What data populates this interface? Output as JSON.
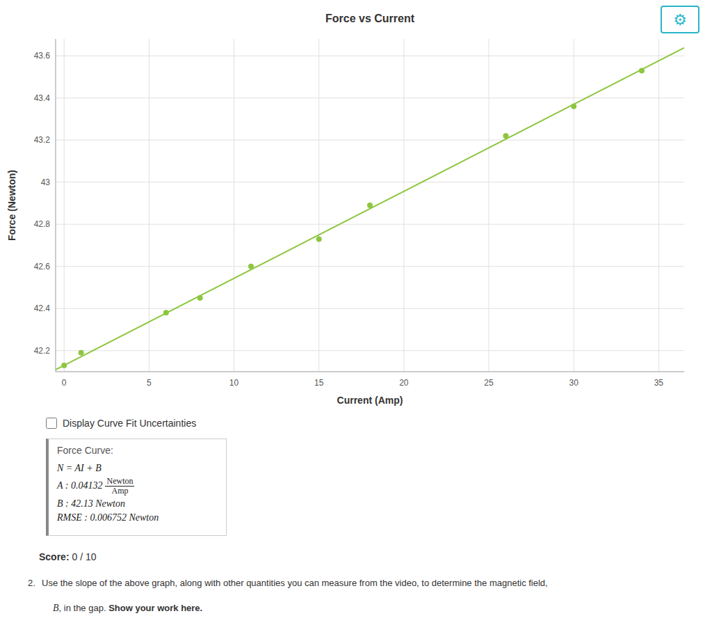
{
  "chart_data": {
    "type": "scatter",
    "title": "Force vs Current",
    "x_label": "Current (Amp)",
    "y_label": "Force (Newton)",
    "x": [
      0,
      1,
      6,
      8,
      11,
      15,
      18,
      26,
      30,
      34
    ],
    "values": [
      42.13,
      42.19,
      42.38,
      42.45,
      42.6,
      42.73,
      42.89,
      43.22,
      43.36,
      43.53
    ],
    "color": "#8dc63f",
    "fit_line": {
      "slope": 0.04132,
      "intercept": 42.13,
      "color": "#8dc63f"
    },
    "xlim": [
      -0.5,
      36.5
    ],
    "ylim": [
      42.1,
      43.68
    ],
    "xticks": [
      0,
      5,
      10,
      15,
      20,
      25,
      30,
      35
    ],
    "yticks": [
      42.2,
      42.4,
      42.6,
      42.8,
      43,
      43.2,
      43.4,
      43.6
    ],
    "grid": true,
    "annotations": {
      "gear": "⚙",
      "checkbox_label": "Display Curve Fit Uncertainties",
      "box_title": "Force Curve:",
      "equation": "N = AI + B",
      "slope_line": {
        "text": "A : 0.04132",
        "numerator": "Newton",
        "denominator": "Amp"
      },
      "intercept_line": "B : 42.13 Newton",
      "rmse_line": "RMSE : 0.006752 Newton",
      "score_label": "Score:",
      "score_value": "0 / 10",
      "item_number": "2.",
      "item_line1": "Use the slope of the above graph, along with other quantities you can measure from the video, to determine the magnetic field,",
      "item_symbol": "B",
      "item_line2_plain": ", in the gap. ",
      "item_line2_bold": "Show your work here."
    }
  }
}
